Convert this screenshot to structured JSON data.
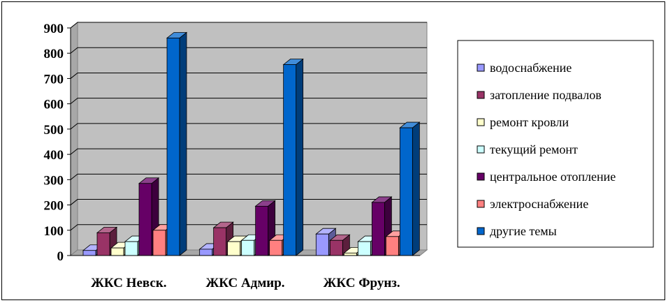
{
  "chart_data": {
    "type": "bar",
    "title": "",
    "xlabel": "",
    "ylabel": "",
    "ylim": [
      0,
      900
    ],
    "yticks": [
      0,
      100,
      200,
      300,
      400,
      500,
      600,
      700,
      800,
      900
    ],
    "grid": true,
    "legend_position": "right",
    "categories": [
      "ЖКС Невск.",
      "ЖКС Адмир.",
      "ЖКС Фрунз."
    ],
    "series": [
      {
        "name": "водоснабжение",
        "color": "#9999FF",
        "values": [
          20,
          25,
          85
        ]
      },
      {
        "name": "затопление подвалов",
        "color": "#993366",
        "values": [
          90,
          110,
          60
        ]
      },
      {
        "name": "ремонт кровли",
        "color": "#FFFFCC",
        "values": [
          30,
          55,
          10
        ]
      },
      {
        "name": "текущий ремонт",
        "color": "#CCFFFF",
        "values": [
          55,
          60,
          55
        ]
      },
      {
        "name": "центральное отопление",
        "color": "#660066",
        "values": [
          285,
          195,
          210
        ]
      },
      {
        "name": "электроснабжение",
        "color": "#FF8080",
        "values": [
          100,
          60,
          75
        ]
      },
      {
        "name": "другие темы",
        "color": "#0066CC",
        "values": [
          860,
          755,
          505
        ]
      }
    ],
    "plot_background": "#C0C0C0"
  }
}
